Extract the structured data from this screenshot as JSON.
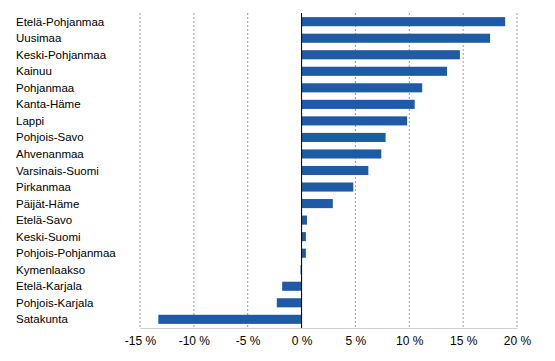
{
  "chart_data": {
    "type": "bar",
    "orientation": "horizontal",
    "categories": [
      "Etelä-Pohjanmaa",
      "Uusimaa",
      "Keski-Pohjanmaa",
      "Kainuu",
      "Pohjanmaa",
      "Kanta-Häme",
      "Lappi",
      "Pohjois-Savo",
      "Ahvenanmaa",
      "Varsinais-Suomi",
      "Pirkanmaa",
      "Päijät-Häme",
      "Etelä-Savo",
      "Keski-Suomi",
      "Pohjois-Pohjanmaa",
      "Kymenlaakso",
      "Etelä-Karjala",
      "Pohjois-Karjala",
      "Satakunta"
    ],
    "values": [
      18.9,
      17.5,
      14.7,
      13.5,
      11.2,
      10.5,
      9.8,
      7.8,
      7.4,
      6.2,
      4.8,
      2.9,
      0.5,
      0.4,
      0.4,
      -0.1,
      -1.8,
      -2.3,
      -13.3
    ],
    "color": "#1f5aa6",
    "xlim": [
      -15,
      20
    ],
    "xticks": [
      {
        "value": -15,
        "label": "-15 %"
      },
      {
        "value": -10,
        "label": "-10 %"
      },
      {
        "value": -5,
        "label": "-5 %"
      },
      {
        "value": 0,
        "label": "0 %"
      },
      {
        "value": 5,
        "label": "5 %"
      },
      {
        "value": 10,
        "label": "10 %"
      },
      {
        "value": 15,
        "label": "15 %"
      },
      {
        "value": 20,
        "label": "20 %"
      }
    ],
    "grid": true
  }
}
